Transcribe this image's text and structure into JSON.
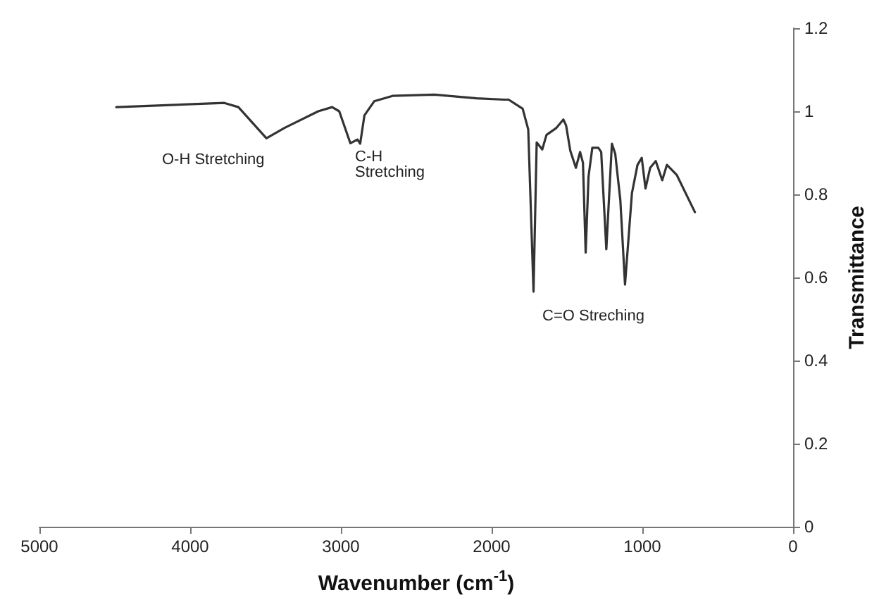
{
  "chart_data": {
    "type": "line",
    "xlabel": "Wavenumber (cm$^{-1}$)",
    "ylabel": "Transmittance",
    "x": [
      4490,
      3773,
      3680,
      3494,
      3374,
      3150,
      3058,
      3011,
      2937,
      2890,
      2872,
      2844,
      2779,
      2658,
      2380,
      2100,
      1915,
      1887,
      1794,
      1757,
      1722,
      1701,
      1664,
      1636,
      1570,
      1524,
      1506,
      1478,
      1441,
      1413,
      1394,
      1376,
      1357,
      1332,
      1292,
      1273,
      1239,
      1202,
      1180,
      1146,
      1115,
      1069,
      1032,
      1004,
      979,
      948,
      911,
      868,
      837,
      772,
      651
    ],
    "series": [
      {
        "color": "#333333",
        "values": [
          1.01,
          1.02,
          1.01,
          0.935,
          0.96,
          1.0,
          1.01,
          1.0,
          0.923,
          0.932,
          0.922,
          0.99,
          1.024,
          1.037,
          1.04,
          1.031,
          1.028,
          1.028,
          1.006,
          0.956,
          0.566,
          0.925,
          0.908,
          0.943,
          0.96,
          0.98,
          0.966,
          0.905,
          0.864,
          0.902,
          0.876,
          0.66,
          0.843,
          0.912,
          0.912,
          0.902,
          0.668,
          0.922,
          0.898,
          0.786,
          0.583,
          0.803,
          0.871,
          0.888,
          0.814,
          0.864,
          0.88,
          0.834,
          0.871,
          0.847,
          0.757
        ]
      }
    ],
    "xlim": [
      5000,
      0
    ],
    "xticks": [
      5000,
      4000,
      3000,
      2000,
      1000,
      0
    ],
    "ylim": [
      0,
      1.2
    ],
    "yticks": [
      0,
      0.2,
      0.4,
      0.6,
      0.8,
      1,
      1.2
    ],
    "annotations": [
      "O-H Stretching",
      "C-H Stretching",
      "C=O Streching"
    ],
    "grid": false,
    "marker": "none",
    "line_style": "solid"
  }
}
